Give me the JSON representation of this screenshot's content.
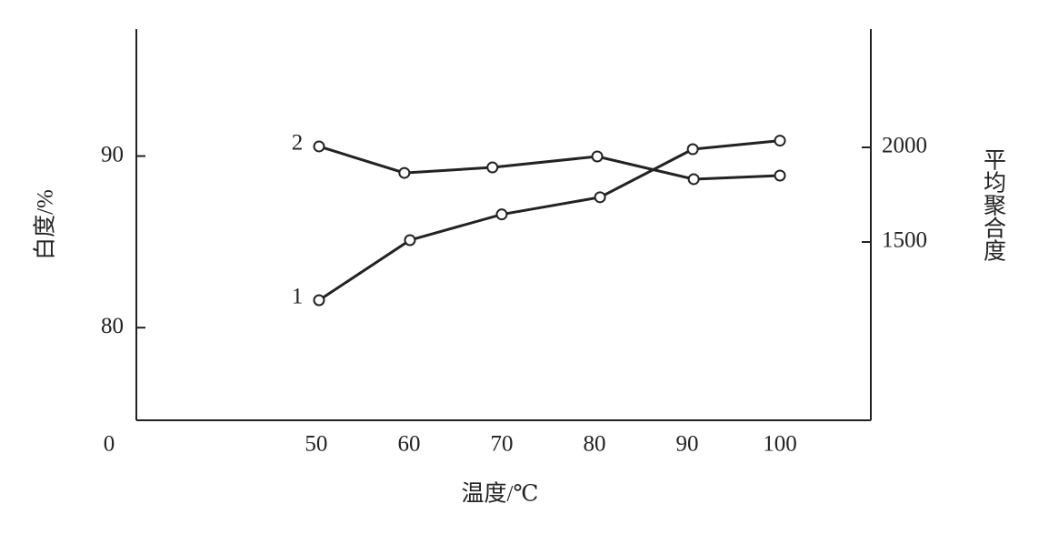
{
  "chart_data": {
    "type": "line",
    "x_label": "温度/℃",
    "y_label": "白度/%",
    "y2_label": "平均聚合度",
    "origin_label": "0",
    "xlim": [
      30.6,
      109.8
    ],
    "xticks": [
      50,
      60,
      70,
      80,
      90,
      100
    ],
    "ylim": [
      74.6,
      97.4
    ],
    "yticks": [
      80,
      90
    ],
    "y2lim": [
      557.7,
      2625
    ],
    "y2ticks": [
      1500,
      2000
    ],
    "series": [
      {
        "name": "1",
        "color": "#222222",
        "x": [
          50.3,
          60.1,
          70,
          80.6,
          90.6,
          100
        ],
        "values": [
          81.6,
          85.1,
          86.6,
          87.6,
          90.4,
          90.9
        ]
      },
      {
        "name": "2",
        "color": "#222222",
        "axis": "y2",
        "x": [
          50.3,
          59.5,
          69,
          80.3,
          90.7,
          100
        ],
        "values": [
          2005,
          1865,
          1894,
          1952,
          1832,
          1851
        ]
      }
    ]
  }
}
